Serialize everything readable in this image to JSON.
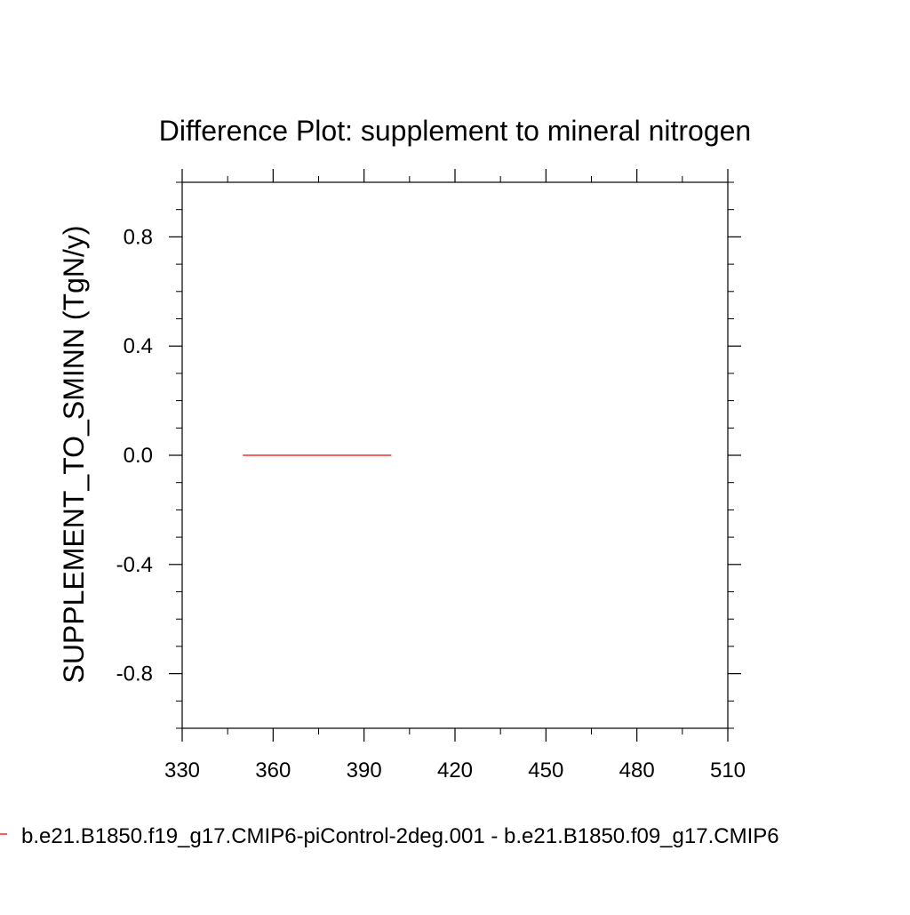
{
  "chart_data": {
    "type": "line",
    "title": "Difference Plot: supplement to mineral nitrogen",
    "xlabel": "",
    "ylabel": "SUPPLEMENT_TO_SMINN  (TgN/y)",
    "xlim": [
      330,
      510
    ],
    "ylim": [
      -1,
      1
    ],
    "x_ticks": [
      330,
      360,
      390,
      420,
      450,
      480,
      510
    ],
    "x_tick_labels": [
      "330",
      "360",
      "390",
      "420",
      "450",
      "480",
      "510"
    ],
    "y_ticks": [
      -0.8,
      -0.4,
      0.0,
      0.4,
      0.8
    ],
    "y_tick_labels": [
      "-0.8",
      "-0.4",
      "0.0",
      "0.4",
      "0.8"
    ],
    "grid": false,
    "legend_position": "bottom",
    "series": [
      {
        "name": "b.e21.B1850.f19_g17.CMIP6-piControl-2deg.001 - b.e21.B1850.f09_g17.CMIP6",
        "color": "#ff0000",
        "x": [
          350,
          399
        ],
        "values": [
          0.0,
          0.0
        ]
      }
    ]
  }
}
